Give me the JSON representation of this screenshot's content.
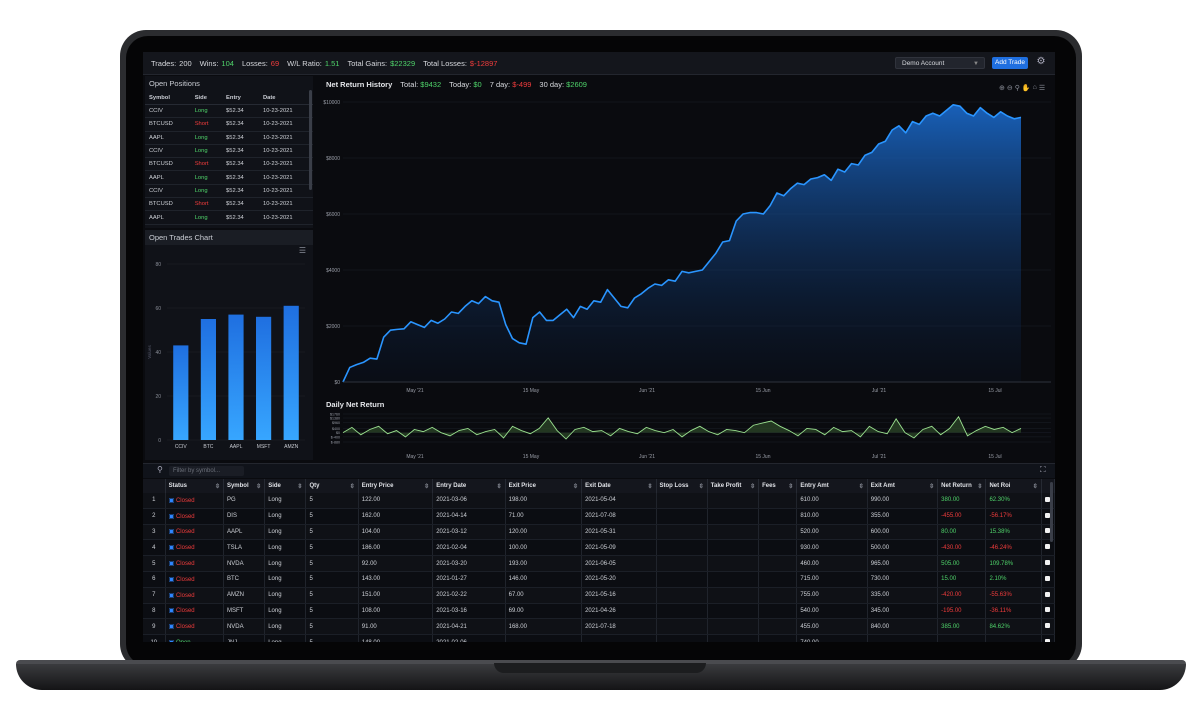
{
  "stats": {
    "trades_label": "Trades:",
    "trades": "200",
    "wins_label": "Wins:",
    "wins": "104",
    "losses_label": "Losses:",
    "losses": "69",
    "ratio_label": "W/L Ratio:",
    "ratio": "1.51",
    "gains_label": "Total Gains:",
    "gains": "$22329",
    "total_losses_label": "Total Losses:",
    "total_losses": "$-12897"
  },
  "account_select": "Demo Account",
  "add_trade_label": "Add Trade",
  "open_positions": {
    "title": "Open Positions",
    "columns": [
      "Symbol",
      "Side",
      "Entry",
      "Date"
    ],
    "rows": [
      [
        "CCIV",
        "Long",
        "$52.34",
        "10-23-2021"
      ],
      [
        "BTCUSD",
        "Short",
        "$52.34",
        "10-23-2021"
      ],
      [
        "AAPL",
        "Long",
        "$52.34",
        "10-23-2021"
      ],
      [
        "CCIV",
        "Long",
        "$52.34",
        "10-23-2021"
      ],
      [
        "BTCUSD",
        "Short",
        "$52.34",
        "10-23-2021"
      ],
      [
        "AAPL",
        "Long",
        "$52.34",
        "10-23-2021"
      ],
      [
        "CCIV",
        "Long",
        "$52.34",
        "10-23-2021"
      ],
      [
        "BTCUSD",
        "Short",
        "$52.34",
        "10-23-2021"
      ],
      [
        "AAPL",
        "Long",
        "$52.34",
        "10-23-2021"
      ]
    ]
  },
  "open_trades_chart": {
    "title": "Open Trades Chart",
    "menu_icon": "hamburger-icon"
  },
  "net_return_header": {
    "title": "Net Return History",
    "total_label": "Total:",
    "total": "$9432",
    "today_label": "Today:",
    "today": "$0",
    "seven_label": "7 day:",
    "seven": "$-499",
    "thirty_label": "30 day:",
    "thirty": "$2609"
  },
  "daily_title": "Daily Net Return",
  "filter_placeholder": "Filter by symbol...",
  "trades_table": {
    "columns": [
      "",
      "Status",
      "Symbol",
      "Side",
      "Qty",
      "Entry Price",
      "Entry Date",
      "Exit Price",
      "Exit Date",
      "Stop Loss",
      "Take Profit",
      "Fees",
      "Entry Amt",
      "Exit Amt",
      "Net Return",
      "Net Roi",
      ""
    ],
    "rows": [
      [
        "1",
        "Closed",
        "PG",
        "Long",
        "5",
        "122.00",
        "2021-03-06",
        "198.00",
        "2021-05-04",
        "",
        "",
        "",
        "610.00",
        "990.00",
        "380.00",
        "62.30%"
      ],
      [
        "2",
        "Closed",
        "DIS",
        "Long",
        "5",
        "162.00",
        "2021-04-14",
        "71.00",
        "2021-07-08",
        "",
        "",
        "",
        "810.00",
        "355.00",
        "-455.00",
        "-56.17%"
      ],
      [
        "3",
        "Closed",
        "AAPL",
        "Long",
        "5",
        "104.00",
        "2021-03-12",
        "120.00",
        "2021-05-31",
        "",
        "",
        "",
        "520.00",
        "600.00",
        "80.00",
        "15.38%"
      ],
      [
        "4",
        "Closed",
        "TSLA",
        "Long",
        "5",
        "186.00",
        "2021-02-04",
        "100.00",
        "2021-05-09",
        "",
        "",
        "",
        "930.00",
        "500.00",
        "-430.00",
        "-46.24%"
      ],
      [
        "5",
        "Closed",
        "NVDA",
        "Long",
        "5",
        "92.00",
        "2021-03-20",
        "193.00",
        "2021-06-05",
        "",
        "",
        "",
        "460.00",
        "965.00",
        "505.00",
        "109.78%"
      ],
      [
        "6",
        "Closed",
        "BTC",
        "Long",
        "5",
        "143.00",
        "2021-01-27",
        "146.00",
        "2021-05-20",
        "",
        "",
        "",
        "715.00",
        "730.00",
        "15.00",
        "2.10%"
      ],
      [
        "7",
        "Closed",
        "AMZN",
        "Long",
        "5",
        "151.00",
        "2021-02-22",
        "67.00",
        "2021-05-16",
        "",
        "",
        "",
        "755.00",
        "335.00",
        "-420.00",
        "-55.63%"
      ],
      [
        "8",
        "Closed",
        "MSFT",
        "Long",
        "5",
        "108.00",
        "2021-03-16",
        "69.00",
        "2021-04-26",
        "",
        "",
        "",
        "540.00",
        "345.00",
        "-195.00",
        "-36.11%"
      ],
      [
        "9",
        "Closed",
        "NVDA",
        "Long",
        "5",
        "91.00",
        "2021-04-21",
        "168.00",
        "2021-07-18",
        "",
        "",
        "",
        "455.00",
        "840.00",
        "385.00",
        "84.62%"
      ],
      [
        "10",
        "Open",
        "JNJ",
        "Long",
        "5",
        "148.00",
        "2021-02-06",
        "",
        "",
        "",
        "",
        "",
        "740.00",
        "",
        "",
        ""
      ]
    ]
  },
  "colors": {
    "accent": "#1f6fe0",
    "gain": "#4fd36a",
    "loss": "#f03c3c",
    "area": "#1b8cff"
  },
  "chart_data": [
    {
      "type": "area",
      "title": "Net Return History",
      "x_ticks": [
        "May '21",
        "15 May",
        "Jun '21",
        "15 Jun",
        "Jul '21",
        "15 Jul"
      ],
      "y_ticks": [
        "$0",
        "$2000",
        "$4000",
        "$6000",
        "$8000",
        "$10000"
      ],
      "ylim": [
        0,
        10000
      ],
      "values": [
        0,
        520,
        620,
        700,
        850,
        820,
        1600,
        1850,
        1880,
        1900,
        2150,
        2050,
        1950,
        2200,
        2100,
        2250,
        2500,
        2450,
        2700,
        2900,
        2800,
        3050,
        2900,
        2850,
        2050,
        1550,
        1400,
        1350,
        2300,
        2500,
        2200,
        2200,
        2400,
        2600,
        2300,
        2700,
        2600,
        2900,
        2850,
        3300,
        3000,
        2700,
        2650,
        3000,
        3150,
        3350,
        3500,
        3450,
        3650,
        3600,
        3950,
        3900,
        3950,
        4000,
        4300,
        4600,
        5000,
        5050,
        5750,
        6000,
        6050,
        6050,
        6000,
        6300,
        6750,
        6650,
        6900,
        7100,
        7050,
        7250,
        7300,
        7400,
        7200,
        7600,
        7500,
        7800,
        7750,
        8100,
        8200,
        8500,
        8600,
        9000,
        9150,
        8900,
        9300,
        9200,
        9500,
        9600,
        9500,
        9700,
        9900,
        9850,
        9600,
        9500,
        9800,
        9600,
        9450,
        9650,
        9500,
        9400,
        9450
      ],
      "grid": true,
      "legend": "none"
    },
    {
      "type": "area",
      "title": "Daily Net Return",
      "y_ticks": [
        "$1760",
        "$1380",
        "$960",
        "$400",
        "$0",
        "$-400",
        "$-880"
      ],
      "ylim": [
        -880,
        1760
      ],
      "x_ticks": [
        "May '21",
        "15 May",
        "Jun '21",
        "15 Jun",
        "Jul '21",
        "15 Jul"
      ],
      "values": [
        0,
        500,
        -200,
        300,
        600,
        -100,
        200,
        -400,
        300,
        100,
        500,
        0,
        -300,
        200,
        400,
        -200,
        100,
        300,
        -500,
        600,
        200,
        -100,
        400,
        1400,
        200,
        -600,
        300,
        500,
        100,
        200,
        -300,
        400,
        100,
        -100,
        500,
        200,
        0,
        300,
        -400,
        200,
        600,
        100,
        -200,
        300,
        200,
        0,
        700,
        900,
        1100,
        600,
        200,
        -300,
        400,
        300,
        -200,
        500,
        100,
        200,
        -400,
        600,
        100,
        -100,
        1300,
        0,
        -500,
        300,
        600,
        -200,
        400,
        1500,
        -300,
        200,
        600,
        300,
        500,
        0,
        400
      ],
      "grid": true,
      "legend": "none"
    },
    {
      "type": "bar",
      "title": "Open Trades Chart",
      "categories": [
        "CCIV",
        "BTC",
        "AAPL",
        "MSFT",
        "AMZN"
      ],
      "values": [
        43,
        55,
        57,
        56,
        61
      ],
      "y_ticks": [
        "0",
        "20",
        "40",
        "60",
        "80"
      ],
      "ylim": [
        0,
        80
      ],
      "ylabel": "Values",
      "grid": true,
      "legend": "none"
    }
  ]
}
